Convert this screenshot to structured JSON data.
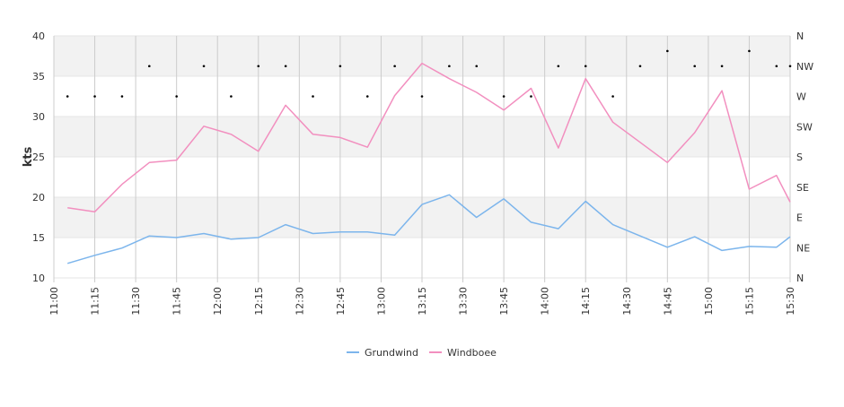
{
  "chart_data": {
    "type": "line",
    "ylabel": "kts",
    "ylim": [
      10,
      40
    ],
    "y_ticks": [
      "10",
      "15",
      "20",
      "25",
      "30",
      "35",
      "40"
    ],
    "x_tick_labels": [
      "11:00",
      "11:15",
      "11:30",
      "11:45",
      "12:00",
      "12:15",
      "12:30",
      "12:45",
      "13:00",
      "13:15",
      "13:30",
      "13:45",
      "14:00",
      "14:15",
      "14:30",
      "14:45",
      "15:00",
      "15:15",
      "15:30"
    ],
    "x_range": [
      "11:00",
      "15:30"
    ],
    "direction_axis_labels": [
      "N",
      "NE",
      "E",
      "SE",
      "S",
      "SW",
      "W",
      "NW",
      "N"
    ],
    "x": [
      "11:05",
      "11:15",
      "11:25",
      "11:35",
      "11:45",
      "11:55",
      "12:05",
      "12:15",
      "12:25",
      "12:35",
      "12:45",
      "12:55",
      "13:05",
      "13:15",
      "13:25",
      "13:35",
      "13:45",
      "13:55",
      "14:05",
      "14:15",
      "14:25",
      "14:35",
      "14:45",
      "14:55",
      "15:05",
      "15:15",
      "15:25",
      "15:30"
    ],
    "series": [
      {
        "name": "Grundwind",
        "color": "#7cb5ec",
        "values": [
          11.8,
          12.8,
          13.7,
          15.2,
          15.0,
          15.5,
          14.8,
          15.0,
          16.6,
          15.5,
          15.7,
          15.7,
          15.3,
          19.1,
          20.3,
          17.5,
          19.8,
          16.9,
          16.1,
          19.5,
          16.6,
          15.2,
          13.8,
          15.1,
          13.4,
          13.9,
          13.8,
          15.1
        ]
      },
      {
        "name": "Windboee",
        "color": "#f28fbf",
        "values": [
          18.7,
          18.2,
          21.6,
          24.3,
          24.6,
          28.8,
          27.8,
          25.7,
          31.4,
          27.8,
          27.4,
          26.2,
          32.6,
          36.6,
          34.7,
          33.0,
          30.8,
          33.5,
          26.1,
          34.7,
          29.3,
          26.8,
          24.3,
          28.0,
          33.2,
          21.0,
          22.7,
          19.4
        ]
      }
    ],
    "wind_direction": {
      "marker_color": "#000000",
      "values": [
        "W",
        "W",
        "W",
        "NW",
        "W",
        "NW",
        "W",
        "NW",
        "NW",
        "W",
        "NW",
        "W",
        "NW",
        "W",
        "NW",
        "NW",
        "W",
        "W",
        "NW",
        "NW",
        "W",
        "NW",
        "NNW",
        "NW",
        "NW",
        "NNW",
        "NW",
        "NW"
      ]
    },
    "grid": true,
    "legend_position": "bottom-center"
  }
}
